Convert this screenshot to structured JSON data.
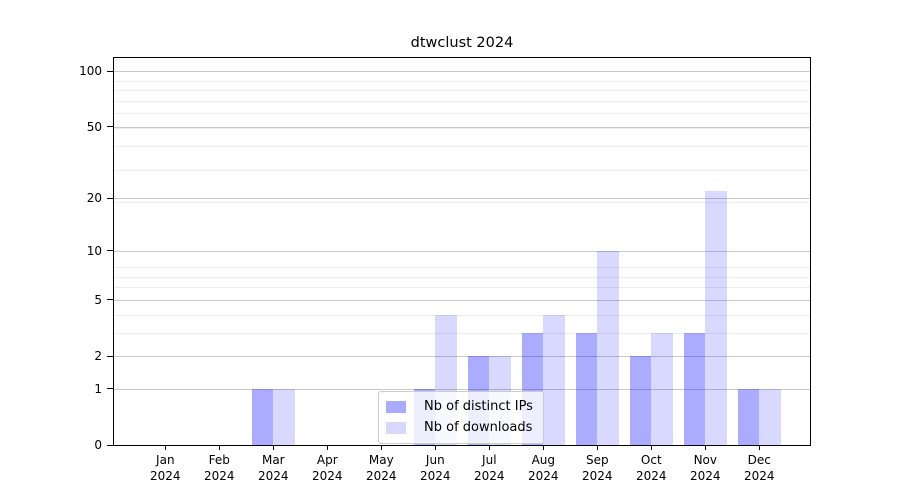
{
  "window": {
    "background": "#ffffff"
  },
  "chart_data": {
    "type": "bar",
    "title": "dtwclust 2024",
    "categories": [
      "Jan",
      "Feb",
      "Mar",
      "Apr",
      "May",
      "Jun",
      "Jul",
      "Aug",
      "Sep",
      "Oct",
      "Nov",
      "Dec"
    ],
    "year": "2024",
    "series": [
      {
        "name": "Nb of distinct IPs",
        "fill": "rgba(0,0,255,0.33)",
        "swatch": "#aaaaff",
        "values": [
          0,
          0,
          1,
          0,
          0,
          1,
          2,
          3,
          3,
          2,
          3,
          1
        ]
      },
      {
        "name": "Nb of downloads",
        "fill": "rgba(0,0,255,0.15)",
        "swatch": "#d8d8ff",
        "values": [
          0,
          0,
          1,
          0,
          0,
          4,
          2,
          4,
          10,
          3,
          22,
          1
        ]
      }
    ],
    "y_axis": {
      "ticks": [
        0,
        1,
        2,
        5,
        10,
        20,
        50,
        100
      ],
      "scale": "log10(1+y)",
      "top_value": 118
    },
    "grid": {
      "on": true,
      "minor_levels": [
        2,
        3,
        4,
        5,
        6,
        7,
        8,
        9,
        20,
        30,
        40,
        50,
        60,
        70,
        80,
        90
      ]
    },
    "legend": {
      "inside_plot": true
    }
  }
}
